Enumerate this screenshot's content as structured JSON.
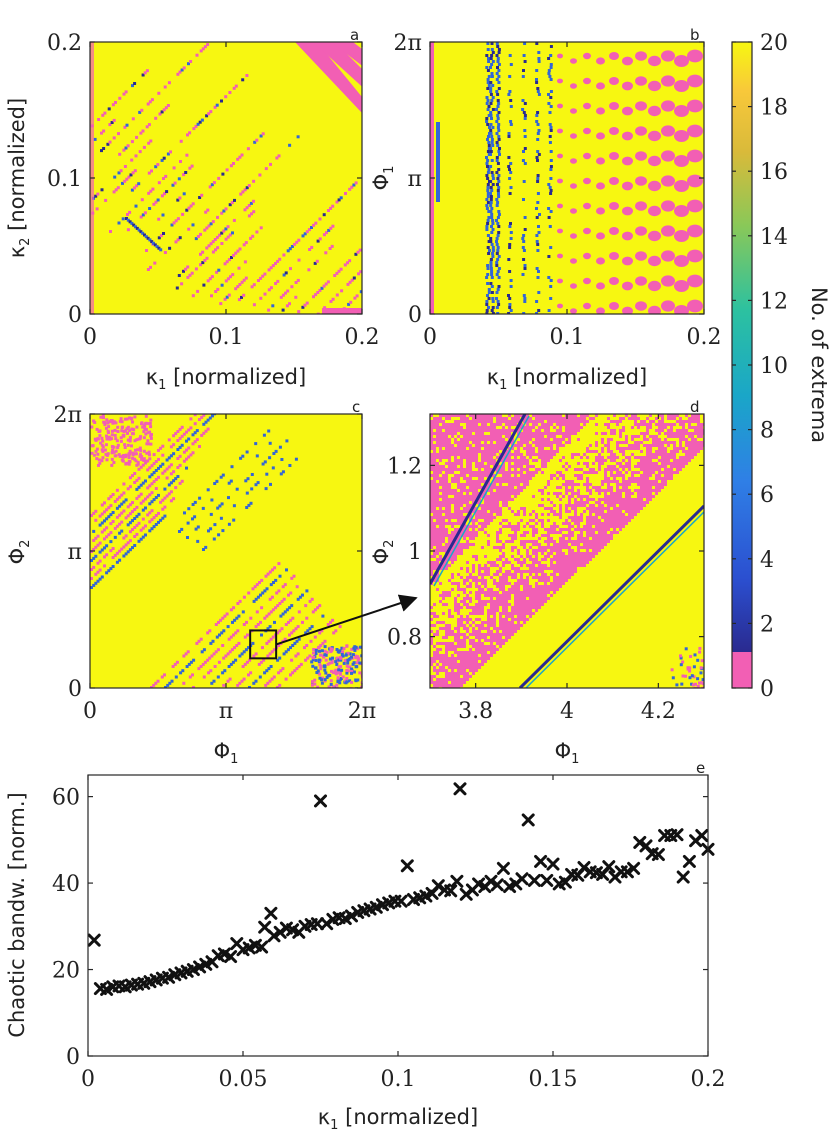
{
  "chart_data": [
    {
      "panel": "a",
      "type": "heatmap",
      "xlabel": "κ₁ [normalized]",
      "ylabel": "κ₂ [normalized]",
      "xlim": [
        0,
        0.2
      ],
      "ylim": [
        0,
        0.2
      ],
      "xticks": [
        {
          "v": 0,
          "t": "0"
        },
        {
          "v": 0.1,
          "t": "0.1"
        },
        {
          "v": 0.2,
          "t": "0.2"
        }
      ],
      "yticks": [
        {
          "v": 0,
          "t": "0"
        },
        {
          "v": 0.1,
          "t": "0.1"
        },
        {
          "v": 0.2,
          "t": "0.2"
        }
      ],
      "description": "Mostly yellow (20 extrema) with diagonal stripes of pink (0) and blue (2-8) running from upper-left to lower-right"
    },
    {
      "panel": "b",
      "type": "heatmap",
      "xlabel": "κ₁ [normalized]",
      "ylabel": "Φ₁",
      "xlim": [
        0,
        0.2
      ],
      "ylim": [
        0,
        6.2832
      ],
      "xticks": [
        {
          "v": 0,
          "t": "0"
        },
        {
          "v": 0.1,
          "t": "0.1"
        },
        {
          "v": 0.2,
          "t": "0.2"
        }
      ],
      "yticks": [
        {
          "v": 0,
          "t": "0"
        },
        {
          "v": 3.1416,
          "t": "π"
        },
        {
          "v": 6.2832,
          "t": "2π"
        }
      ],
      "description": "Yellow background, vertical blue bands near κ₁≈0.04, a grid of pink blobs for κ₁ > 0.05"
    },
    {
      "panel": "c",
      "type": "heatmap",
      "xlabel": "Φ₁",
      "ylabel": "Φ₂",
      "xlim": [
        0,
        6.2832
      ],
      "ylim": [
        0,
        6.2832
      ],
      "xticks": [
        {
          "v": 0,
          "t": "0"
        },
        {
          "v": 3.1416,
          "t": "π"
        },
        {
          "v": 6.2832,
          "t": "2π"
        }
      ],
      "yticks": [
        {
          "v": 0,
          "t": "0"
        },
        {
          "v": 3.1416,
          "t": "π"
        },
        {
          "v": 6.2832,
          "t": "2π"
        }
      ],
      "zoom_box": {
        "x0": 3.7,
        "x1": 4.3,
        "y0": 0.68,
        "y1": 1.32
      },
      "description": "Yellow with diagonal pink/blue stripes in upper-left and lower-right regions"
    },
    {
      "panel": "d",
      "type": "heatmap",
      "xlabel": "Φ₁",
      "ylabel": "Φ₂",
      "xlim": [
        3.7,
        4.3
      ],
      "ylim": [
        0.68,
        1.32
      ],
      "xticks": [
        {
          "v": 3.8,
          "t": "3.8"
        },
        {
          "v": 4.0,
          "t": "4"
        },
        {
          "v": 4.2,
          "t": "4.2"
        }
      ],
      "yticks": [
        {
          "v": 0.8,
          "t": "0.8"
        },
        {
          "v": 1.0,
          "t": "1"
        },
        {
          "v": 1.2,
          "t": "1.2"
        }
      ],
      "description": "Zoom of box in c: two diagonal pink/noisy bands with blue edges separated by a clean yellow band"
    },
    {
      "panel": "e",
      "type": "scatter",
      "marker": "x",
      "xlabel": "κ₁ [normalized]",
      "ylabel": "Chaotic bandw. [norm.]",
      "xlim": [
        0,
        0.2
      ],
      "ylim": [
        0,
        65
      ],
      "xticks": [
        {
          "v": 0,
          "t": "0"
        },
        {
          "v": 0.05,
          "t": "0.05"
        },
        {
          "v": 0.1,
          "t": "0.1"
        },
        {
          "v": 0.15,
          "t": "0.15"
        },
        {
          "v": 0.2,
          "t": "0.2"
        }
      ],
      "yticks": [
        {
          "v": 0,
          "t": "0"
        },
        {
          "v": 20,
          "t": "20"
        },
        {
          "v": 40,
          "t": "40"
        },
        {
          "v": 60,
          "t": "60"
        }
      ],
      "points": [
        [
          0.002,
          26.8
        ],
        [
          0.004,
          15.6
        ],
        [
          0.006,
          15.4
        ],
        [
          0.008,
          16.0
        ],
        [
          0.01,
          16.2
        ],
        [
          0.012,
          16.0
        ],
        [
          0.014,
          16.4
        ],
        [
          0.016,
          16.6
        ],
        [
          0.018,
          16.8
        ],
        [
          0.02,
          17.2
        ],
        [
          0.022,
          17.6
        ],
        [
          0.024,
          18.0
        ],
        [
          0.026,
          18.2
        ],
        [
          0.028,
          18.8
        ],
        [
          0.03,
          19.2
        ],
        [
          0.032,
          19.6
        ],
        [
          0.034,
          20.0
        ],
        [
          0.036,
          20.6
        ],
        [
          0.038,
          21.2
        ],
        [
          0.04,
          21.8
        ],
        [
          0.042,
          23.2
        ],
        [
          0.044,
          23.6
        ],
        [
          0.046,
          23.0
        ],
        [
          0.048,
          26.0
        ],
        [
          0.05,
          24.6
        ],
        [
          0.052,
          25.0
        ],
        [
          0.054,
          25.6
        ],
        [
          0.056,
          25.2
        ],
        [
          0.057,
          29.8
        ],
        [
          0.059,
          33.0
        ],
        [
          0.06,
          27.8
        ],
        [
          0.062,
          28.6
        ],
        [
          0.064,
          29.6
        ],
        [
          0.066,
          29.2
        ],
        [
          0.068,
          28.6
        ],
        [
          0.07,
          30.0
        ],
        [
          0.072,
          30.4
        ],
        [
          0.074,
          30.6
        ],
        [
          0.075,
          59.0
        ],
        [
          0.077,
          30.6
        ],
        [
          0.079,
          31.6
        ],
        [
          0.081,
          32.0
        ],
        [
          0.083,
          31.8
        ],
        [
          0.085,
          32.4
        ],
        [
          0.087,
          33.2
        ],
        [
          0.089,
          33.6
        ],
        [
          0.091,
          34.0
        ],
        [
          0.093,
          34.4
        ],
        [
          0.095,
          35.0
        ],
        [
          0.097,
          35.4
        ],
        [
          0.099,
          35.8
        ],
        [
          0.101,
          35.8
        ],
        [
          0.103,
          44.0
        ],
        [
          0.105,
          36.2
        ],
        [
          0.107,
          36.6
        ],
        [
          0.109,
          37.0
        ],
        [
          0.111,
          37.6
        ],
        [
          0.113,
          39.4
        ],
        [
          0.115,
          38.4
        ],
        [
          0.117,
          38.2
        ],
        [
          0.119,
          40.4
        ],
        [
          0.12,
          61.8
        ],
        [
          0.122,
          37.4
        ],
        [
          0.124,
          38.4
        ],
        [
          0.126,
          39.8
        ],
        [
          0.128,
          39.2
        ],
        [
          0.13,
          40.4
        ],
        [
          0.132,
          39.6
        ],
        [
          0.134,
          43.4
        ],
        [
          0.136,
          39.2
        ],
        [
          0.138,
          39.8
        ],
        [
          0.14,
          41.0
        ],
        [
          0.142,
          54.6
        ],
        [
          0.144,
          40.6
        ],
        [
          0.146,
          45.0
        ],
        [
          0.148,
          40.6
        ],
        [
          0.15,
          44.4
        ],
        [
          0.152,
          39.8
        ],
        [
          0.154,
          40.2
        ],
        [
          0.156,
          42.0
        ],
        [
          0.158,
          41.8
        ],
        [
          0.16,
          43.6
        ],
        [
          0.162,
          42.6
        ],
        [
          0.164,
          42.4
        ],
        [
          0.166,
          42.0
        ],
        [
          0.168,
          43.8
        ],
        [
          0.17,
          41.4
        ],
        [
          0.172,
          42.6
        ],
        [
          0.174,
          42.6
        ],
        [
          0.176,
          43.4
        ],
        [
          0.178,
          49.4
        ],
        [
          0.18,
          48.6
        ],
        [
          0.182,
          46.8
        ],
        [
          0.184,
          46.6
        ],
        [
          0.186,
          51.0
        ],
        [
          0.188,
          51.0
        ],
        [
          0.19,
          51.2
        ],
        [
          0.192,
          41.4
        ],
        [
          0.194,
          45.0
        ],
        [
          0.196,
          49.8
        ],
        [
          0.198,
          51.0
        ],
        [
          0.2,
          47.8
        ]
      ]
    }
  ],
  "colorbar": {
    "label": "No. of extrema",
    "ticks": [
      "0",
      "2",
      "4",
      "6",
      "8",
      "10",
      "12",
      "14",
      "16",
      "18",
      "20"
    ],
    "range": [
      0,
      20
    ],
    "colors": {
      "zero": "#f25fb4",
      "low": "#2a2a8f",
      "mid": "#1aa6c8",
      "high": "#f7f711"
    }
  },
  "panel_letters": [
    "a",
    "b",
    "c",
    "d",
    "e"
  ]
}
